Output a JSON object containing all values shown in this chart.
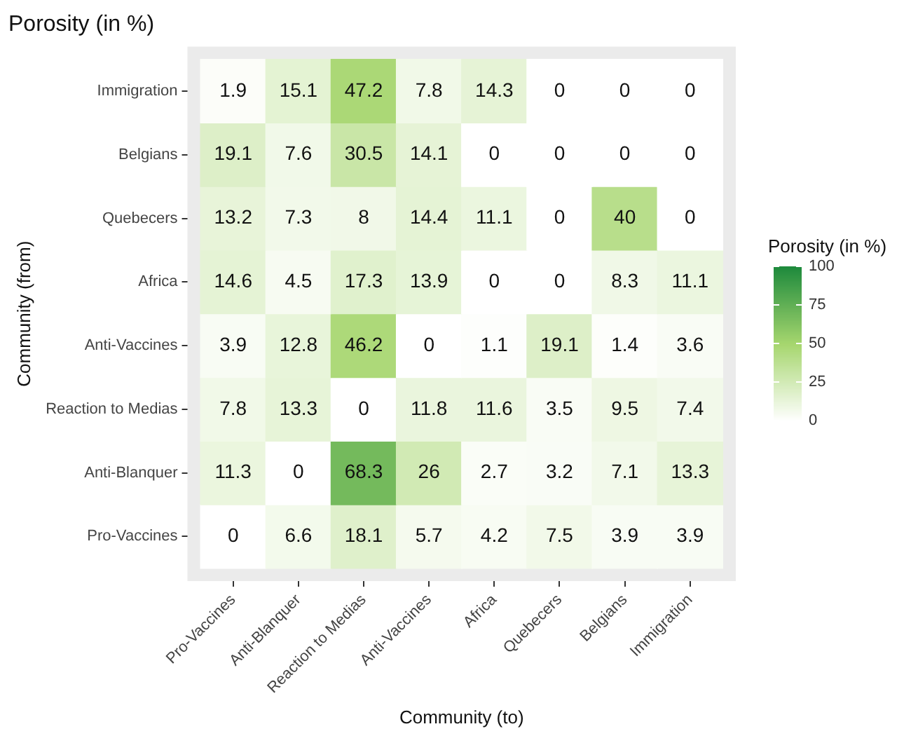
{
  "chart_data": {
    "type": "heatmap",
    "title": "Porosity (in %)",
    "xlabel": "Community (to)",
    "ylabel": "Community (from)",
    "clabel": "Porosity (in %)",
    "categories": [
      "Pro-Vaccines",
      "Anti-Blanquer",
      "Reaction to Medias",
      "Anti-Vaccines",
      "Africa",
      "Quebecers",
      "Belgians",
      "Immigration"
    ],
    "y_categories": [
      "Immigration",
      "Belgians",
      "Quebecers",
      "Africa",
      "Anti-Vaccines",
      "Reaction to Medias",
      "Anti-Blanquer",
      "Pro-Vaccines"
    ],
    "cells": [
      [
        1.9,
        15.1,
        47.2,
        7.8,
        14.3,
        0,
        0,
        0
      ],
      [
        19.1,
        7.6,
        30.5,
        14.1,
        0,
        0,
        0,
        0
      ],
      [
        13.2,
        7.3,
        8,
        14.4,
        11.1,
        0,
        40,
        0
      ],
      [
        14.6,
        4.5,
        17.3,
        13.9,
        0,
        0,
        8.3,
        11.1
      ],
      [
        3.9,
        12.8,
        46.2,
        0,
        1.1,
        19.1,
        1.4,
        3.6
      ],
      [
        7.8,
        13.3,
        0,
        11.8,
        11.6,
        3.5,
        9.5,
        7.4
      ],
      [
        11.3,
        0,
        68.3,
        26,
        2.7,
        3.2,
        7.1,
        13.3
      ],
      [
        0,
        6.6,
        18.1,
        5.7,
        4.2,
        7.5,
        3.9,
        3.9
      ]
    ],
    "clim": [
      0,
      100
    ],
    "cticks": [
      0,
      25,
      50,
      75,
      100
    ],
    "data_labels": true
  }
}
